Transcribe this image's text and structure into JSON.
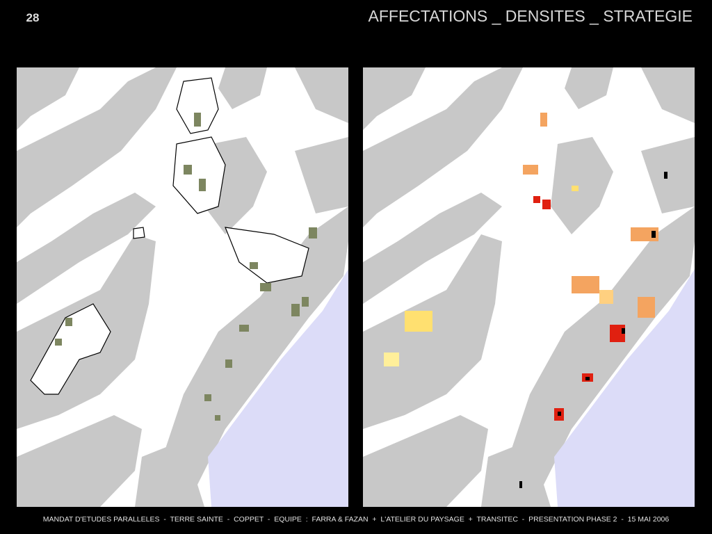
{
  "slide": {
    "number": "28",
    "title": "AFFECTATIONS _ DENSITES _ STRATEGIE",
    "footer": "MANDAT D'ETUDES PARALLELES  -  TERRE SAINTE  -  COPPET  -  EQUIPE  :  FARRA & FAZAN  +  L'ATELIER DU PAYSAGE  +  TRANSITEC  -  PRESENTATION PHASE 2  -  15 MAI 2006"
  }
}
